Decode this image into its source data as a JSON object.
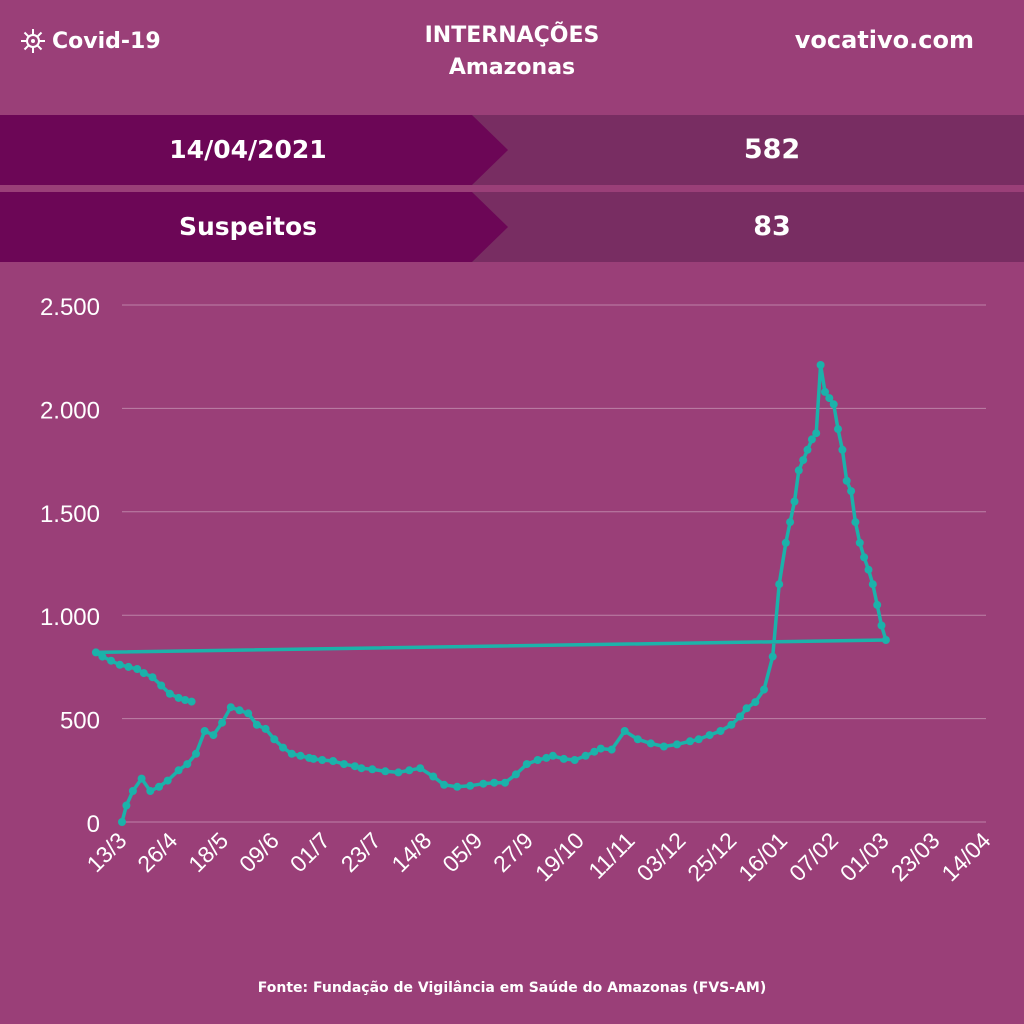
{
  "header": {
    "brand": "Covid-19",
    "brand_icon": "virus-icon",
    "title": "INTERNAÇÕES",
    "subtitle": "Amazonas",
    "site": "vocativo.com"
  },
  "summary": [
    {
      "label": "14/04/2021",
      "value": "582"
    },
    {
      "label": "Suspeitos",
      "value": "83"
    }
  ],
  "colors": {
    "background": "#9a3f78",
    "line": "#1bb2aa",
    "label_band": "#6c0656",
    "value_band": "#782d62"
  },
  "chart_data": {
    "type": "line",
    "title": "",
    "xlabel": "",
    "ylabel": "",
    "ylim": [
      0,
      2500
    ],
    "yticks": [
      {
        "v": 0,
        "label": "0"
      },
      {
        "v": 500,
        "label": "500"
      },
      {
        "v": 1000,
        "label": "1.000"
      },
      {
        "v": 1500,
        "label": "1.500"
      },
      {
        "v": 2000,
        "label": "2.000"
      },
      {
        "v": 2500,
        "label": "2.500"
      }
    ],
    "grid": true,
    "x_start": "13/3/2020",
    "x_end": "14/04/2021",
    "xticks": [
      "13/3",
      "26/4",
      "18/5",
      "09/6",
      "01/7",
      "23/7",
      "14/8",
      "05/9",
      "27/9",
      "19/10",
      "11/11",
      "03/12",
      "25/12",
      "16/01",
      "07/02",
      "01/03",
      "23/03",
      "14/04"
    ],
    "series": [
      {
        "name": "",
        "x": [
          "13/3",
          "15/3",
          "18/3",
          "22/3",
          "26/3",
          "30/3",
          "03/4",
          "08/4",
          "12/4",
          "16/4",
          "20/4",
          "24/4",
          "28/4",
          "02/5",
          "06/5",
          "10/5",
          "14/5",
          "18/5",
          "22/5",
          "26/5",
          "30/5",
          "03/6",
          "07/6",
          "09/6",
          "13/6",
          "18/6",
          "23/6",
          "28/6",
          "01/7",
          "06/7",
          "12/7",
          "18/7",
          "23/7",
          "28/7",
          "03/8",
          "08/8",
          "14/8",
          "20/8",
          "26/8",
          "31/8",
          "05/9",
          "10/9",
          "15/9",
          "20/9",
          "24/9",
          "27/9",
          "02/10",
          "07/10",
          "12/10",
          "16/10",
          "19/10",
          "24/10",
          "30/10",
          "05/11",
          "11/11",
          "17/11",
          "23/11",
          "29/11",
          "03/12",
          "08/12",
          "13/12",
          "18/12",
          "22/12",
          "25/12",
          "29/12",
          "02/01",
          "06/01",
          "09/01",
          "12/01",
          "14/01",
          "16/01",
          "18/01",
          "20/01",
          "22/01",
          "24/01",
          "26/01",
          "28/01",
          "30/01",
          "01/02",
          "03/02",
          "05/02",
          "07/02",
          "09/02",
          "11/02",
          "13/02",
          "15/02",
          "17/02",
          "19/02",
          "21/02",
          "23/02",
          "25/02",
          "27/02",
          "01/03",
          "04/03",
          "08/03",
          "12/03",
          "16/03",
          "20/03",
          "23/03",
          "27/03",
          "31/03",
          "04/04",
          "08/04",
          "11/04",
          "14/04"
        ],
        "values": [
          0,
          80,
          150,
          210,
          150,
          170,
          200,
          250,
          280,
          330,
          440,
          420,
          480,
          555,
          540,
          525,
          470,
          450,
          400,
          360,
          330,
          320,
          310,
          305,
          300,
          295,
          280,
          270,
          260,
          255,
          245,
          240,
          250,
          260,
          220,
          180,
          170,
          175,
          185,
          190,
          190,
          230,
          280,
          300,
          310,
          320,
          305,
          300,
          320,
          340,
          355,
          350,
          440,
          400,
          380,
          365,
          375,
          390,
          400,
          420,
          440,
          470,
          510,
          550,
          580,
          640,
          800,
          1150,
          1350,
          1450,
          1550,
          1700,
          1750,
          1800,
          1850,
          1880,
          2210,
          2080,
          2050,
          2020,
          1900,
          1800,
          1650,
          1600,
          1450,
          1350,
          1280,
          1220,
          1150,
          1050,
          950,
          880,
          820,
          800,
          780,
          760,
          750,
          740,
          720,
          700,
          660,
          620,
          600,
          590,
          582
        ]
      }
    ]
  },
  "source": "Fonte: Fundação de Vigilância em Saúde do Amazonas (FVS-AM)"
}
